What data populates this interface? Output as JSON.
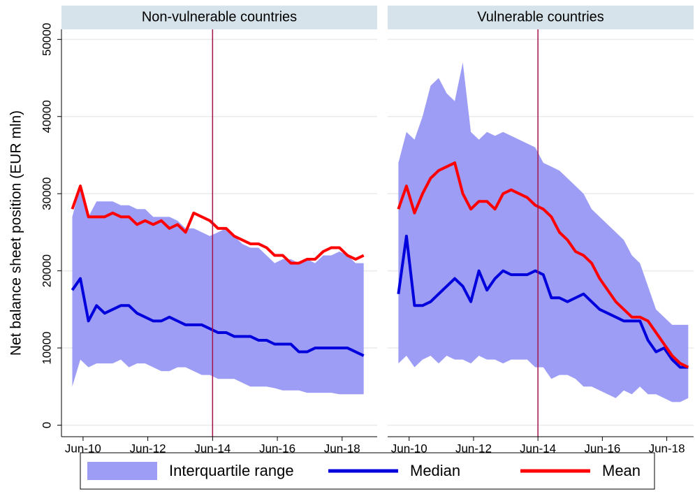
{
  "chart_data": [
    {
      "type": "line",
      "title": "Non-vulnerable countries",
      "ylabel": "Net balance sheet position (EUR mln)",
      "legend_position": "bottom",
      "grid": true,
      "vline": "2014-06",
      "vline_color": "#a3144a",
      "xlim": [
        "2009-10",
        "2019-07"
      ],
      "ylim": [
        -1500,
        51300
      ],
      "xticks": [
        {
          "value": "2010-06",
          "label": "Jun-10"
        },
        {
          "value": "2012-06",
          "label": "Jun-12"
        },
        {
          "value": "2014-06",
          "label": "Jun-14"
        },
        {
          "value": "2016-06",
          "label": "Jun-16"
        },
        {
          "value": "2018-06",
          "label": "Jun-18"
        }
      ],
      "yticks": [
        0,
        10000,
        20000,
        30000,
        40000,
        50000
      ],
      "x": [
        "2010-02",
        "2010-05",
        "2010-08",
        "2010-11",
        "2011-02",
        "2011-05",
        "2011-08",
        "2011-11",
        "2012-02",
        "2012-05",
        "2012-08",
        "2012-11",
        "2013-02",
        "2013-05",
        "2013-08",
        "2013-11",
        "2014-02",
        "2014-05",
        "2014-08",
        "2014-11",
        "2015-02",
        "2015-05",
        "2015-08",
        "2015-11",
        "2016-02",
        "2016-05",
        "2016-08",
        "2016-11",
        "2017-02",
        "2017-05",
        "2017-08",
        "2017-11",
        "2018-02",
        "2018-05",
        "2018-08",
        "2018-11",
        "2019-02"
      ],
      "series": [
        {
          "name": "Interquartile range",
          "type": "band",
          "color": "#9d9df5",
          "low": [
            5000,
            8500,
            7500,
            8000,
            8000,
            8000,
            8500,
            7500,
            8000,
            8000,
            7500,
            7000,
            7000,
            7500,
            7500,
            7000,
            6500,
            6500,
            6000,
            6000,
            6000,
            5500,
            5000,
            5000,
            5000,
            4800,
            4500,
            4500,
            4500,
            4200,
            4200,
            4200,
            4200,
            4000,
            4000,
            4000,
            4000
          ],
          "high": [
            27000,
            31000,
            27000,
            29000,
            29000,
            29000,
            28500,
            28500,
            28000,
            28000,
            27000,
            27000,
            27000,
            26500,
            25500,
            25500,
            25000,
            24500,
            25000,
            25500,
            24500,
            23500,
            23000,
            23000,
            22000,
            21000,
            21500,
            21500,
            21000,
            21500,
            21000,
            22000,
            22000,
            22500,
            22000,
            21000,
            21000
          ]
        },
        {
          "name": "Median",
          "type": "line",
          "color": "#0000dd",
          "values": [
            17500,
            19000,
            13500,
            15500,
            14500,
            15000,
            15500,
            15500,
            14500,
            14000,
            13500,
            13500,
            14000,
            13500,
            13000,
            13000,
            13000,
            12500,
            12000,
            12000,
            11500,
            11500,
            11500,
            11000,
            11000,
            10500,
            10500,
            10500,
            9500,
            9500,
            10000,
            10000,
            10000,
            10000,
            10000,
            9500,
            9000
          ]
        },
        {
          "name": "Mean",
          "type": "line",
          "color": "#ff0000",
          "values": [
            28000,
            31000,
            27000,
            27000,
            27000,
            27500,
            27000,
            27000,
            26000,
            26500,
            26000,
            26500,
            25500,
            26000,
            25000,
            27500,
            27000,
            26500,
            25500,
            25500,
            24500,
            24000,
            23500,
            23500,
            23000,
            22000,
            22000,
            21000,
            21000,
            21500,
            21500,
            22500,
            23000,
            23000,
            22000,
            21500,
            22000
          ]
        }
      ]
    },
    {
      "type": "line",
      "title": "Vulnerable countries",
      "grid": true,
      "vline": "2014-06",
      "vline_color": "#a3144a",
      "xlim": [
        "2009-10",
        "2019-04"
      ],
      "ylim": [
        -1500,
        51300
      ],
      "xticks": [
        {
          "value": "2010-06",
          "label": "Jun-10"
        },
        {
          "value": "2012-06",
          "label": "Jun-12"
        },
        {
          "value": "2014-06",
          "label": "Jun-14"
        },
        {
          "value": "2016-06",
          "label": "Jun-16"
        },
        {
          "value": "2018-06",
          "label": "Jun-18"
        }
      ],
      "yticks": [
        0,
        10000,
        20000,
        30000,
        40000,
        50000
      ],
      "x": [
        "2010-02",
        "2010-05",
        "2010-08",
        "2010-11",
        "2011-02",
        "2011-05",
        "2011-08",
        "2011-11",
        "2012-02",
        "2012-05",
        "2012-08",
        "2012-11",
        "2013-02",
        "2013-05",
        "2013-08",
        "2013-11",
        "2014-02",
        "2014-05",
        "2014-08",
        "2014-11",
        "2015-02",
        "2015-05",
        "2015-08",
        "2015-11",
        "2016-02",
        "2016-05",
        "2016-08",
        "2016-11",
        "2017-02",
        "2017-05",
        "2017-08",
        "2017-11",
        "2018-02",
        "2018-05",
        "2018-08",
        "2018-11",
        "2019-02"
      ],
      "series": [
        {
          "type": "band",
          "color": "#9d9df5",
          "low": [
            8000,
            9000,
            7500,
            8500,
            9000,
            8000,
            9000,
            8500,
            8500,
            8000,
            9000,
            8500,
            8500,
            8000,
            8500,
            8500,
            8500,
            7500,
            7500,
            6000,
            6500,
            6500,
            6000,
            5000,
            5000,
            4500,
            4000,
            3500,
            4500,
            4000,
            5000,
            4000,
            4000,
            3500,
            3000,
            3000,
            3500
          ],
          "high": [
            34000,
            38000,
            37000,
            40000,
            44000,
            45000,
            43000,
            42000,
            47000,
            38000,
            37000,
            38000,
            37500,
            38000,
            37500,
            37000,
            36500,
            36000,
            34000,
            33500,
            33000,
            32000,
            31000,
            30000,
            28000,
            27000,
            26000,
            25000,
            24000,
            22000,
            21000,
            18000,
            15000,
            14000,
            13000,
            13000,
            13000
          ]
        },
        {
          "type": "line",
          "color": "#0000dd",
          "values": [
            17000,
            24500,
            15500,
            15500,
            16000,
            17000,
            18000,
            19000,
            18000,
            16000,
            20000,
            17500,
            19000,
            20000,
            19500,
            19500,
            19500,
            20000,
            19500,
            16500,
            16500,
            16000,
            16500,
            17000,
            16000,
            15000,
            14500,
            14000,
            13500,
            13500,
            13500,
            11000,
            9500,
            10000,
            8500,
            7500,
            7500
          ]
        },
        {
          "type": "line",
          "color": "#ff0000",
          "values": [
            28000,
            31000,
            27500,
            30000,
            32000,
            33000,
            33500,
            34000,
            30000,
            28000,
            29000,
            29000,
            28000,
            30000,
            30500,
            30000,
            29500,
            28500,
            28000,
            27000,
            25000,
            24000,
            22500,
            22000,
            21000,
            19000,
            17500,
            16000,
            15000,
            14000,
            14000,
            13500,
            12000,
            10500,
            9000,
            8000,
            7500
          ]
        }
      ]
    }
  ]
}
